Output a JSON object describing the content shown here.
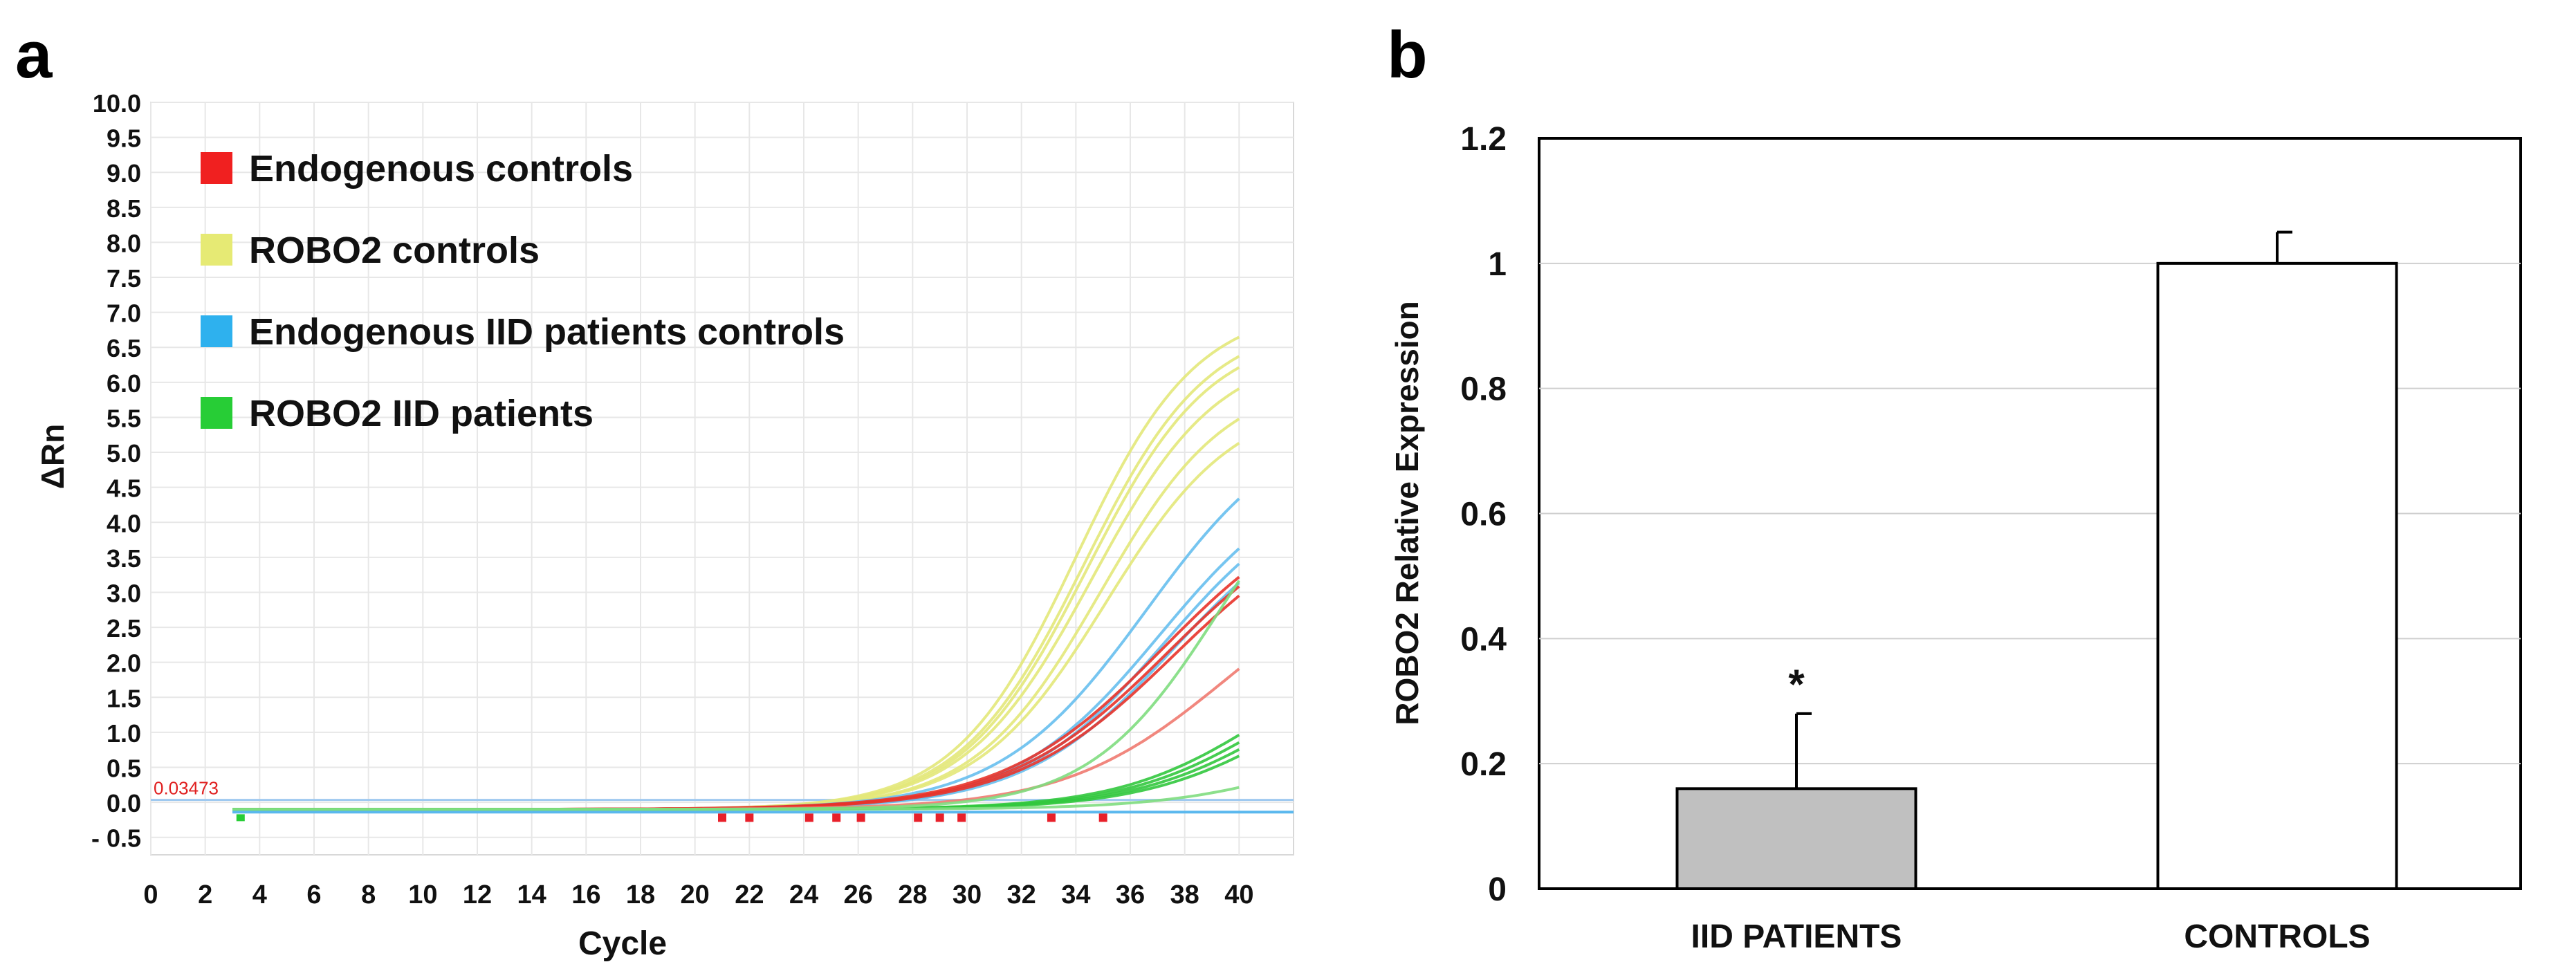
{
  "panels": {
    "a": "a",
    "b": "b"
  },
  "chart_data": [
    {
      "type": "line",
      "panel": "a",
      "title": "",
      "xlabel": "Cycle",
      "ylabel": "ΔRn",
      "xlim": [
        0,
        42
      ],
      "ylim": [
        -0.75,
        10.0
      ],
      "x_ticks": [
        0,
        2,
        4,
        6,
        8,
        10,
        12,
        14,
        16,
        18,
        20,
        22,
        24,
        26,
        28,
        30,
        32,
        34,
        36,
        38,
        40
      ],
      "y_ticks": [
        -0.5,
        0.0,
        0.5,
        1.0,
        1.5,
        2.0,
        2.5,
        3.0,
        3.5,
        4.0,
        4.5,
        5.0,
        5.5,
        6.0,
        6.5,
        7.0,
        7.5,
        8.0,
        8.5,
        9.0,
        9.5,
        10.0
      ],
      "y_tick_labels": [
        "- 0.5",
        "0.0",
        "0.5",
        "1.0",
        "1.5",
        "2.0",
        "2.5",
        "3.0",
        "3.5",
        "4.0",
        "4.5",
        "5.0",
        "5.5",
        "6.0",
        "6.5",
        "7.0",
        "7.5",
        "8.0",
        "8.5",
        "9.0",
        "9.5",
        "10.0"
      ],
      "grid": true,
      "threshold": {
        "value": 0.03473,
        "label": "0.03473"
      },
      "baseline": -0.1,
      "legend_position": "top-left",
      "legend": [
        {
          "label": "Endogenous controls",
          "color": "#f02020"
        },
        {
          "label": "ROBO2 controls",
          "color": "#e6ea74"
        },
        {
          "label": "Endogenous IID patients controls",
          "color": "#2eb1ee"
        },
        {
          "label": "ROBO2 IID patients",
          "color": "#27cd36"
        }
      ],
      "series": [
        {
          "name": "ROBO2 controls 1",
          "group": "ROBO2 controls",
          "color": "#e3e87a",
          "ct": 26.0,
          "plateau": 7.1,
          "k": 0.45
        },
        {
          "name": "ROBO2 controls 2",
          "group": "ROBO2 controls",
          "color": "#e3e87a",
          "ct": 26.3,
          "plateau": 6.9,
          "k": 0.44
        },
        {
          "name": "ROBO2 controls 3",
          "group": "ROBO2 controls",
          "color": "#e3e87a",
          "ct": 26.4,
          "plateau": 6.75,
          "k": 0.44
        },
        {
          "name": "ROBO2 controls 4",
          "group": "ROBO2 controls",
          "color": "#e3e87a",
          "ct": 26.6,
          "plateau": 6.5,
          "k": 0.43
        },
        {
          "name": "ROBO2 controls 5",
          "group": "ROBO2 controls",
          "color": "#e3e87a",
          "ct": 26.9,
          "plateau": 6.1,
          "k": 0.43
        },
        {
          "name": "ROBO2 controls 6",
          "group": "ROBO2 controls",
          "color": "#e3e87a",
          "ct": 27.1,
          "plateau": 5.8,
          "k": 0.42
        },
        {
          "name": "Endogenous IID 1",
          "group": "Endogenous IID patients controls",
          "color": "#67bfee",
          "ct": 28.6,
          "plateau": 5.6,
          "k": 0.37
        },
        {
          "name": "Endogenous IID 2",
          "group": "Endogenous IID patients controls",
          "color": "#67bfee",
          "ct": 29.1,
          "plateau": 4.9,
          "k": 0.37
        },
        {
          "name": "Endogenous IID 3",
          "group": "Endogenous IID patients controls",
          "color": "#67bfee",
          "ct": 29.3,
          "plateau": 4.7,
          "k": 0.37
        },
        {
          "name": "Endogenous IID 4",
          "group": "Endogenous IID patients controls",
          "color": "#67bfee",
          "ct": 29.6,
          "plateau": 4.5,
          "k": 0.36
        },
        {
          "name": "Endogenous controls 1",
          "group": "Endogenous controls",
          "color": "#e8332a",
          "ct": 29.2,
          "plateau": 4.5,
          "k": 0.34
        },
        {
          "name": "Endogenous controls 2",
          "group": "Endogenous controls",
          "color": "#e8332a",
          "ct": 29.4,
          "plateau": 4.4,
          "k": 0.34
        },
        {
          "name": "Endogenous controls 3",
          "group": "Endogenous controls",
          "color": "#e8332a",
          "ct": 29.6,
          "plateau": 4.3,
          "k": 0.34
        },
        {
          "name": "Endogenous controls 4",
          "group": "Endogenous controls",
          "color": "#f07a70",
          "ct": 31.5,
          "plateau": 3.6,
          "k": 0.34
        },
        {
          "name": "ROBO2 IID 1",
          "group": "ROBO2 IID patients",
          "color": "#32c83e",
          "ct": 33.0,
          "plateau": 2.5,
          "k": 0.37
        },
        {
          "name": "ROBO2 IID 2",
          "group": "ROBO2 IID patients",
          "color": "#32c83e",
          "ct": 33.3,
          "plateau": 2.4,
          "k": 0.37
        },
        {
          "name": "ROBO2 IID 3",
          "group": "ROBO2 IID patients",
          "color": "#32c83e",
          "ct": 33.6,
          "plateau": 2.3,
          "k": 0.37
        },
        {
          "name": "ROBO2 IID 4",
          "group": "ROBO2 IID patients",
          "color": "#32c83e",
          "ct": 33.9,
          "plateau": 2.2,
          "k": 0.37
        },
        {
          "name": "ROBO2 IID 5",
          "group": "ROBO2 IID patients",
          "color": "#7fdd7f",
          "ct": 31.3,
          "plateau": 5.6,
          "k": 0.42
        },
        {
          "name": "ROBO2 IID 6",
          "group": "ROBO2 IID patients",
          "color": "#7fdd7f",
          "ct": 35.2,
          "plateau": 1.2,
          "k": 0.36
        }
      ],
      "ct_markers": [
        21,
        22,
        24.2,
        25.2,
        26.1,
        28.2,
        29.0,
        29.8,
        33.1,
        35.0
      ]
    },
    {
      "type": "bar",
      "panel": "b",
      "title": "",
      "xlabel": "",
      "ylabel": "ROBO2 Relative Expression",
      "categories": [
        "IID PATIENTS",
        "CONTROLS"
      ],
      "values": [
        0.16,
        1.0
      ],
      "errors": [
        0.12,
        0.05
      ],
      "bar_colors": [
        "#c0c0c0",
        "#ffffff"
      ],
      "annotations": [
        "*",
        ""
      ],
      "ylim": [
        0,
        1.2
      ],
      "y_ticks": [
        0,
        0.2,
        0.4,
        0.6,
        0.8,
        1,
        1.2
      ],
      "y_tick_labels": [
        "0",
        "0.2",
        "0.4",
        "0.6",
        "0.8",
        "1",
        "1.2"
      ],
      "grid": true
    }
  ]
}
